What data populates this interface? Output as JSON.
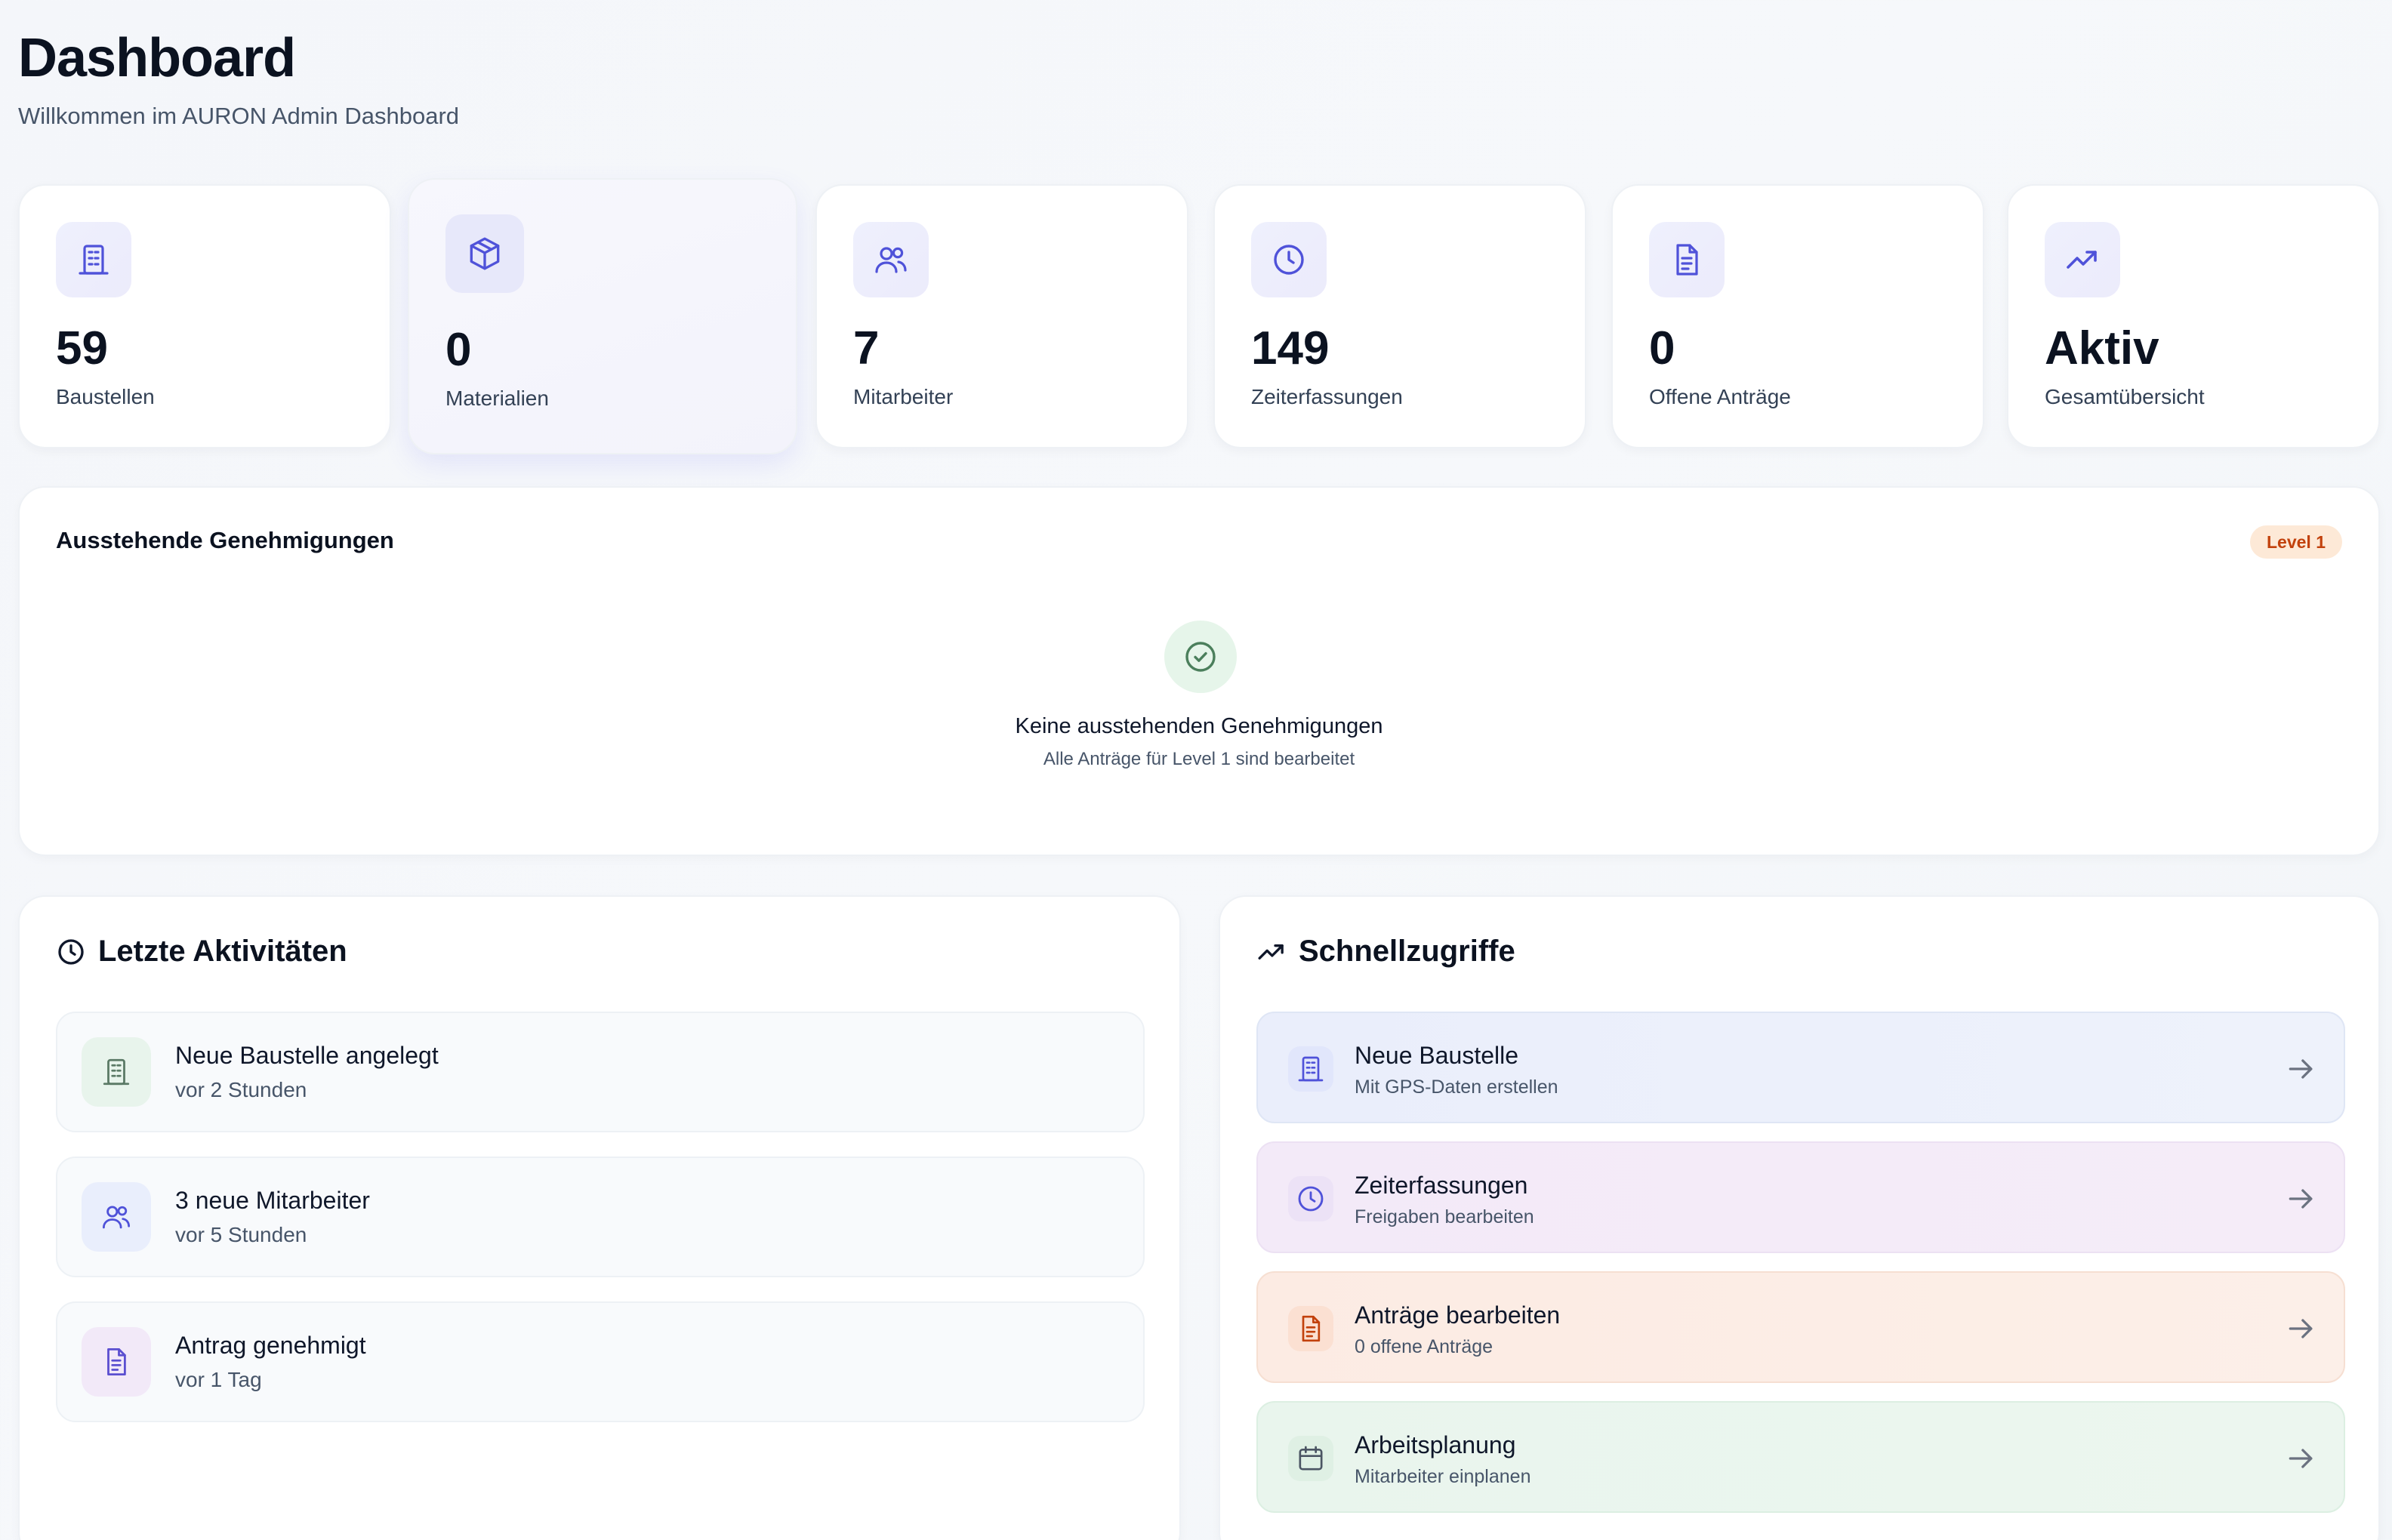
{
  "header": {
    "title": "Dashboard",
    "subtitle": "Willkommen im AURON Admin Dashboard"
  },
  "stats": [
    {
      "value": "59",
      "label": "Baustellen",
      "icon": "building-icon"
    },
    {
      "value": "0",
      "label": "Materialien",
      "icon": "package-icon"
    },
    {
      "value": "7",
      "label": "Mitarbeiter",
      "icon": "users-icon"
    },
    {
      "value": "149",
      "label": "Zeiterfassungen",
      "icon": "clock-icon"
    },
    {
      "value": "0",
      "label": "Offene Anträge",
      "icon": "document-icon"
    },
    {
      "value": "Aktiv",
      "label": "Gesamtübersicht",
      "icon": "trending-up-icon"
    }
  ],
  "pending": {
    "title": "Ausstehende Genehmigungen",
    "badge": "Level 1",
    "empty_title": "Keine ausstehenden Genehmigungen",
    "empty_subtitle": "Alle Anträge für Level 1 sind bearbeitet"
  },
  "activities": {
    "title": "Letzte Aktivitäten",
    "items": [
      {
        "title": "Neue Baustelle angelegt",
        "time": "vor 2 Stunden",
        "icon": "building-icon"
      },
      {
        "title": "3 neue Mitarbeiter",
        "time": "vor 5 Stunden",
        "icon": "users-icon"
      },
      {
        "title": "Antrag genehmigt",
        "time": "vor 1 Tag",
        "icon": "document-icon"
      }
    ]
  },
  "quick_access": {
    "title": "Schnellzugriffe",
    "items": [
      {
        "title": "Neue Baustelle",
        "subtitle": "Mit GPS-Daten erstellen",
        "icon": "building-icon"
      },
      {
        "title": "Zeiterfassungen",
        "subtitle": "Freigaben bearbeiten",
        "icon": "clock-icon"
      },
      {
        "title": "Anträge bearbeiten",
        "subtitle": "0 offene Anträge",
        "icon": "document-icon"
      },
      {
        "title": "Arbeitsplanung",
        "subtitle": "Mitarbeiter einplanen",
        "icon": "calendar-icon"
      }
    ]
  },
  "colors": {
    "accent": "#4f52d9",
    "badge_bg": "#fde9d7",
    "badge_text": "#c2410c",
    "success_bg": "#e6f5ea"
  }
}
